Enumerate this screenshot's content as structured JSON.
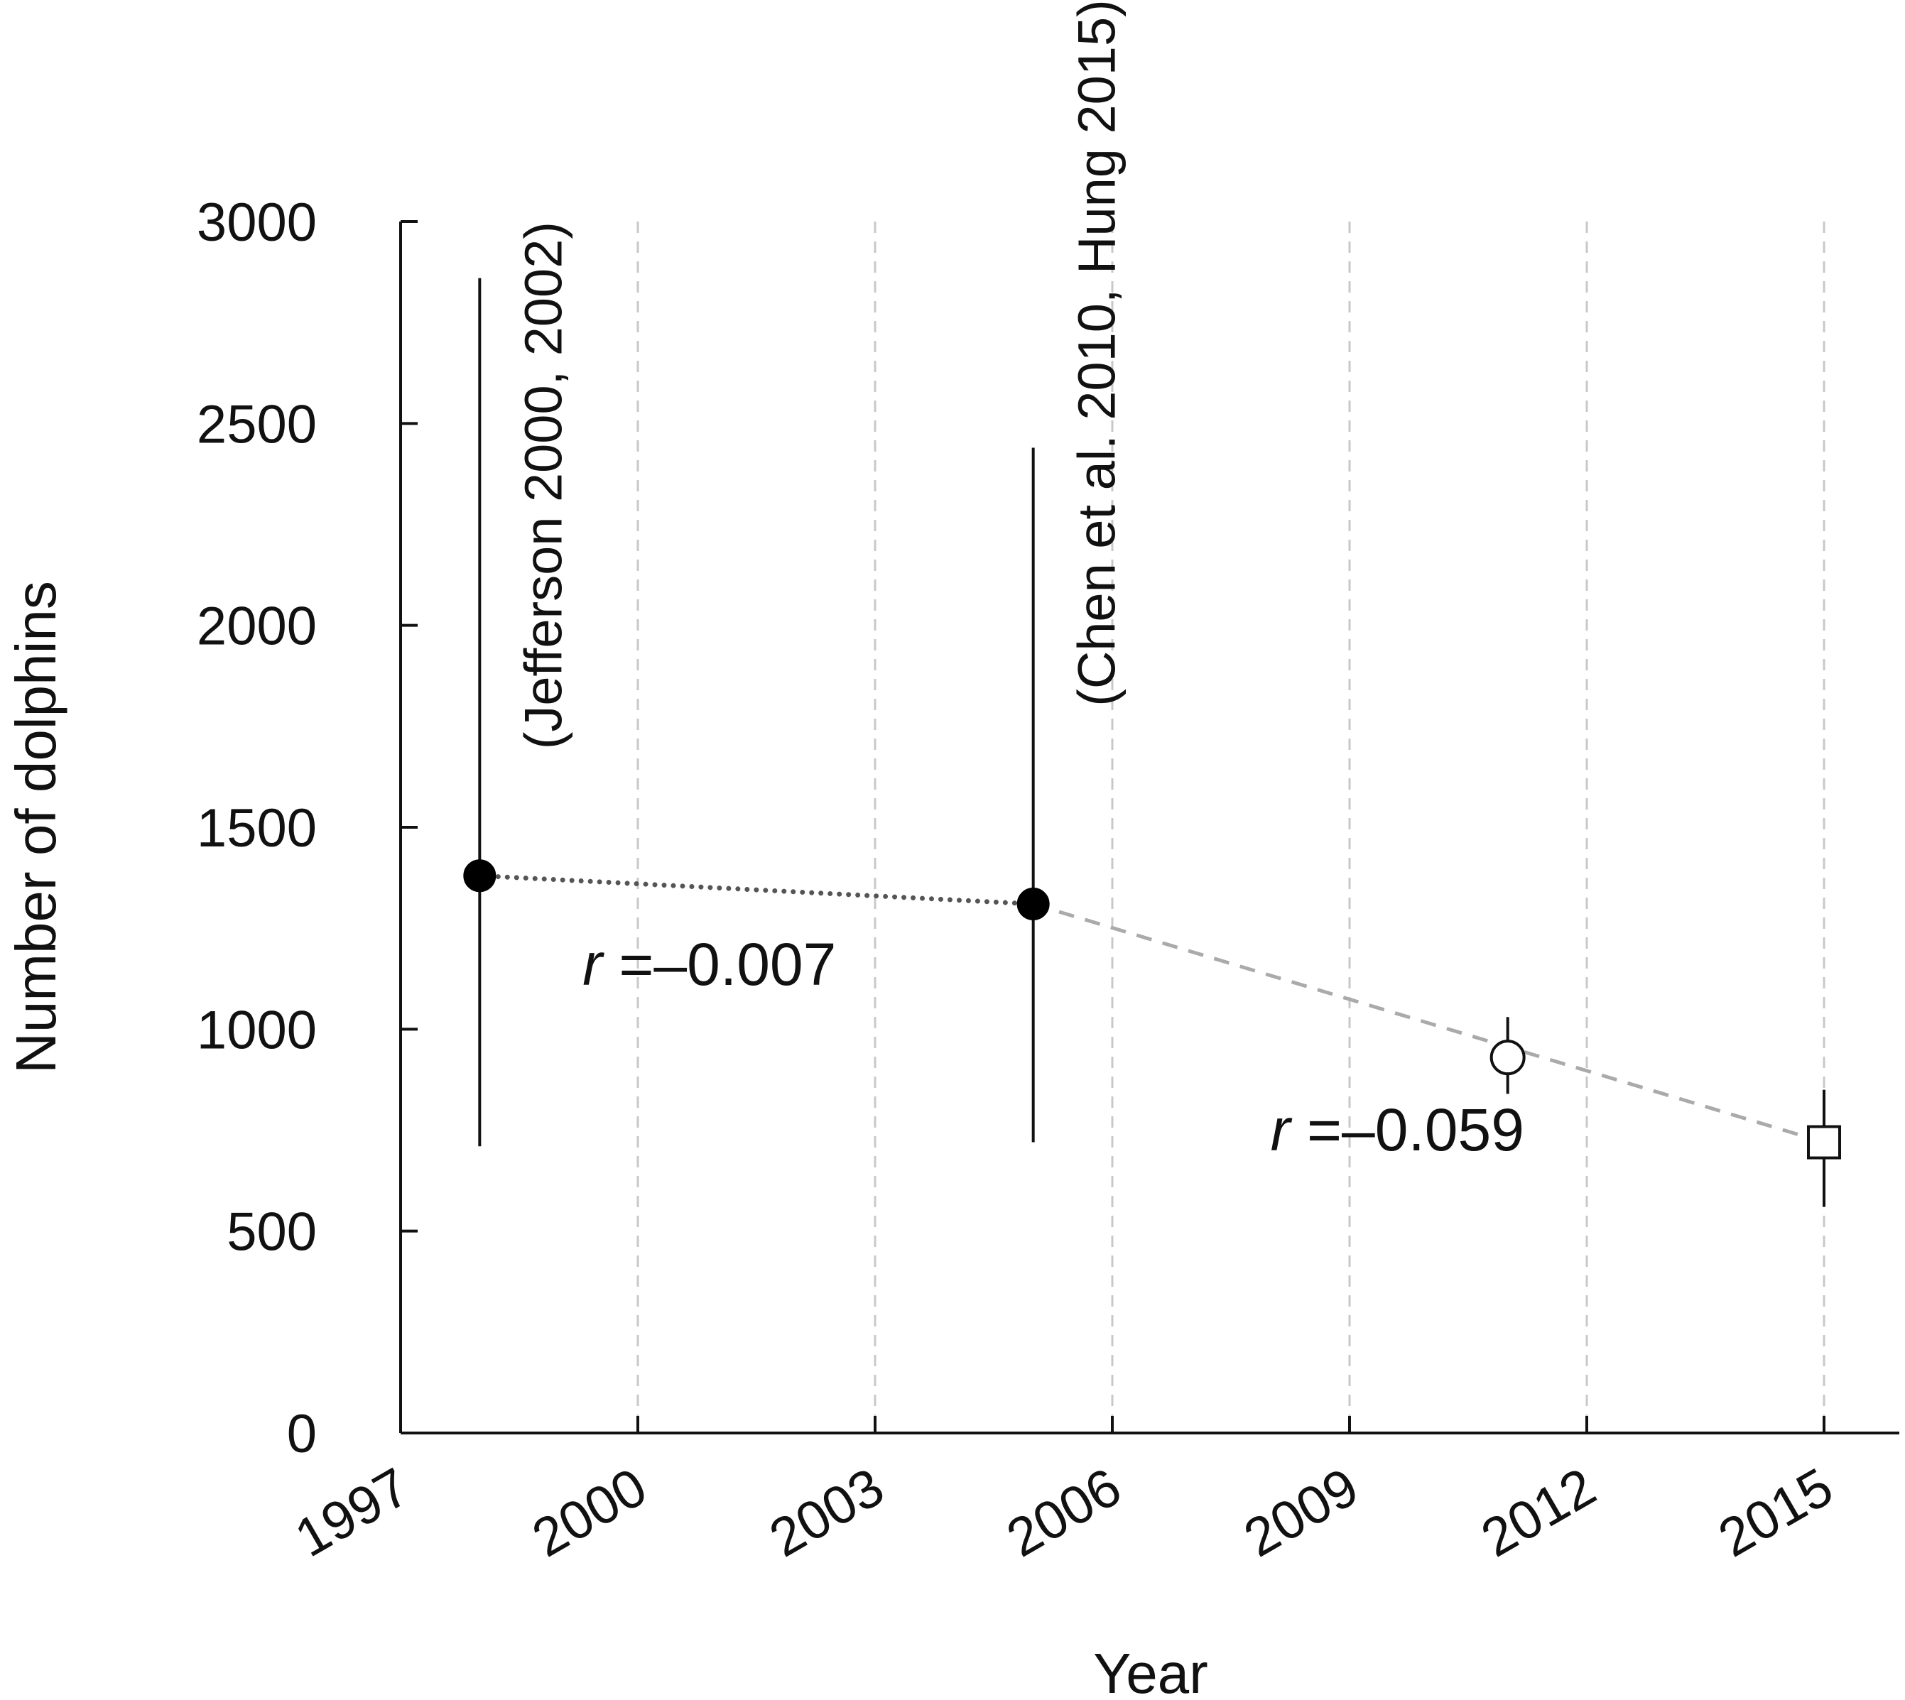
{
  "chart_data": {
    "type": "scatter",
    "xlabel": "Year",
    "ylabel": "Number of dolphins",
    "xlim": [
      1997,
      2016
    ],
    "ylim": [
      0,
      3000
    ],
    "x_ticks": [
      "1997",
      "2000",
      "2003",
      "2006",
      "2009",
      "2012",
      "2015"
    ],
    "y_ticks": [
      "0",
      "500",
      "1000",
      "1500",
      "2000",
      "2500",
      "3000"
    ],
    "grid": "vertical dashed at year ticks",
    "points": [
      {
        "x": 1998,
        "y": 1380,
        "err_low": 710,
        "err_high": 2860,
        "marker": "filled-circle"
      },
      {
        "x": 2005,
        "y": 1310,
        "err_low": 720,
        "err_high": 2440,
        "marker": "filled-circle"
      },
      {
        "x": 2011,
        "y": 930,
        "err_low": 840,
        "err_high": 1030,
        "marker": "open-circle"
      },
      {
        "x": 2015,
        "y": 720,
        "err_low": 560,
        "err_high": 850,
        "marker": "open-square"
      }
    ],
    "trend_lines": [
      {
        "style": "dotted",
        "color": "#555555",
        "from_x": 1998,
        "from_y": 1380,
        "to_x": 2005,
        "to_y": 1310
      },
      {
        "style": "dashed",
        "color": "#aaaaaa",
        "from_x": 2005,
        "from_y": 1310,
        "to_x": 2015,
        "to_y": 720
      }
    ],
    "annotations": [
      {
        "text": "(Jefferson 2000, 2002)",
        "x": 1998,
        "y_top": 3000
      },
      {
        "text": "(Chen et al. 2010, Hung 2015)",
        "x": 2005,
        "y_top": 3550
      }
    ],
    "r_labels": [
      {
        "prefix": "r",
        "value": "=–0.007",
        "x": 1999.3,
        "y": 1110
      },
      {
        "prefix": "r",
        "value": "=–0.059",
        "x": 2008,
        "y": 700
      }
    ]
  }
}
